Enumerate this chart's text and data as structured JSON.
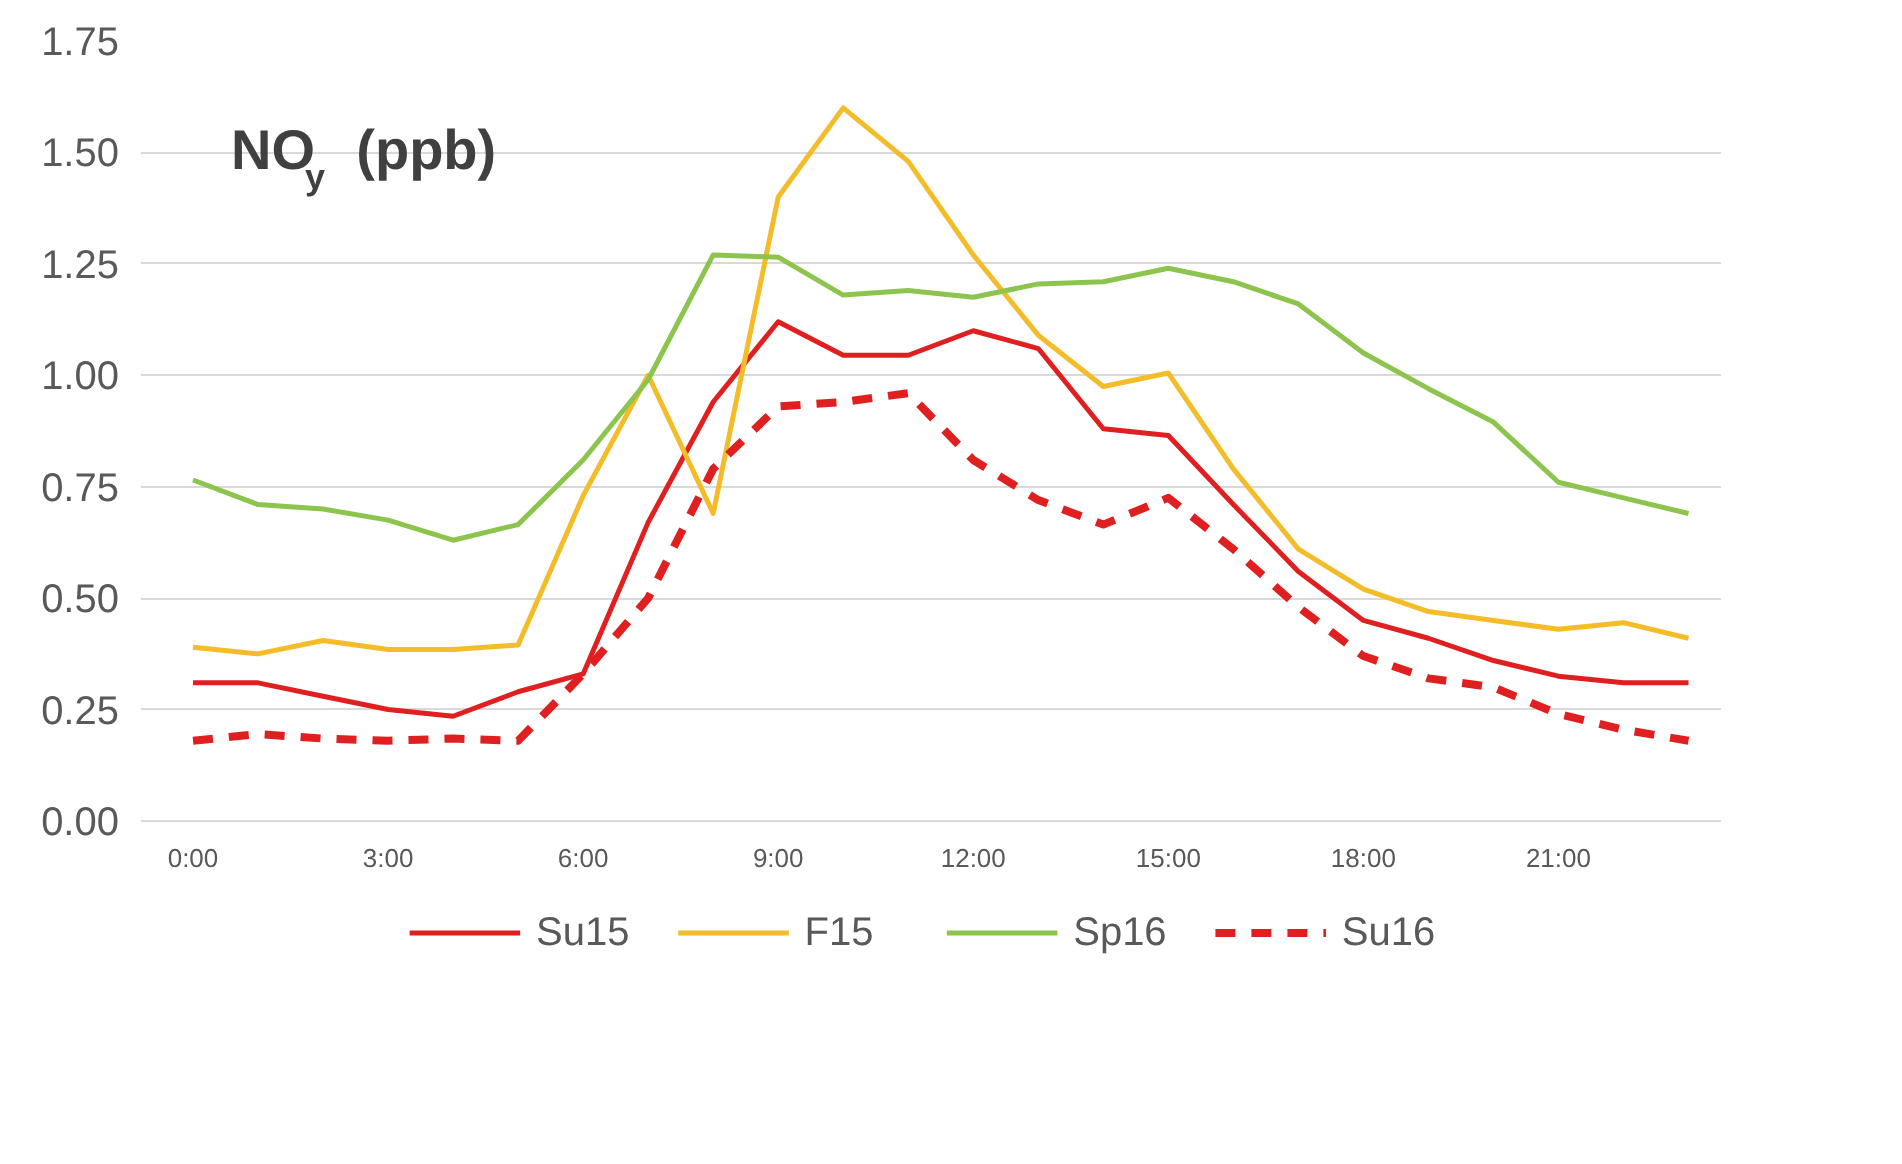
{
  "chart_data": {
    "type": "line",
    "title": "NO$_{y}$ (ppb)",
    "x": [
      0,
      1,
      2,
      3,
      4,
      5,
      6,
      7,
      8,
      9,
      10,
      11,
      12,
      13,
      14,
      15,
      16,
      17,
      18,
      19,
      20,
      21,
      22,
      23
    ],
    "series": [
      {
        "name": "Su15",
        "color": "#e02020",
        "line_style": "solid",
        "values": [
          0.31,
          0.31,
          0.28,
          0.25,
          0.235,
          0.29,
          0.33,
          0.67,
          0.94,
          1.12,
          1.045,
          1.045,
          1.1,
          1.06,
          0.88,
          0.865,
          0.71,
          0.56,
          0.45,
          0.41,
          0.36,
          0.325,
          0.31,
          0.31
        ]
      },
      {
        "name": "F15",
        "color": "#f5bc2a",
        "line_style": "solid",
        "values": [
          0.39,
          0.375,
          0.405,
          0.385,
          0.385,
          0.395,
          0.73,
          1.0,
          0.69,
          1.4,
          1.6,
          1.48,
          1.27,
          1.09,
          0.975,
          1.005,
          0.79,
          0.61,
          0.52,
          0.47,
          0.45,
          0.43,
          0.445,
          0.41
        ]
      },
      {
        "name": "Sp16",
        "color": "#8dc44e",
        "line_style": "solid",
        "values": [
          0.765,
          0.71,
          0.7,
          0.675,
          0.63,
          0.665,
          0.81,
          0.99,
          1.27,
          1.265,
          1.18,
          1.19,
          1.175,
          1.205,
          1.21,
          1.24,
          1.21,
          1.16,
          1.05,
          0.97,
          0.895,
          0.76,
          0.725,
          0.69
        ]
      },
      {
        "name": "Su16",
        "color": "#e02020",
        "line_style": "dashed",
        "values": [
          0.18,
          0.195,
          0.185,
          0.18,
          0.185,
          0.18,
          0.33,
          0.5,
          0.79,
          0.93,
          0.94,
          0.96,
          0.81,
          0.72,
          0.665,
          0.725,
          0.61,
          0.48,
          0.37,
          0.32,
          0.3,
          0.24,
          0.205,
          0.18
        ]
      }
    ],
    "xlim": [
      -0.8,
      23.5
    ],
    "ylim": [
      0,
      1.75
    ],
    "xticks": [
      {
        "value": 0,
        "label": "0:00"
      },
      {
        "value": 3,
        "label": "3:00"
      },
      {
        "value": 6,
        "label": "6:00"
      },
      {
        "value": 9,
        "label": "9:00"
      },
      {
        "value": 12,
        "label": "12:00"
      },
      {
        "value": 15,
        "label": "15:00"
      },
      {
        "value": 18,
        "label": "18:00"
      },
      {
        "value": 21,
        "label": "21:00"
      }
    ],
    "yticks": [
      {
        "value": 0,
        "label": "0.00"
      },
      {
        "value": 0.25,
        "label": "0.25"
      },
      {
        "value": 0.5,
        "label": "0.50"
      },
      {
        "value": 0.75,
        "label": "0.75"
      },
      {
        "value": 1.0,
        "label": "1.00"
      },
      {
        "value": 1.25,
        "label": "1.25"
      },
      {
        "value": 1.5,
        "label": "1.50"
      },
      {
        "value": 1.75,
        "label": "1.75"
      }
    ],
    "grid": "y",
    "legend": "bottom",
    "marker": "none"
  }
}
